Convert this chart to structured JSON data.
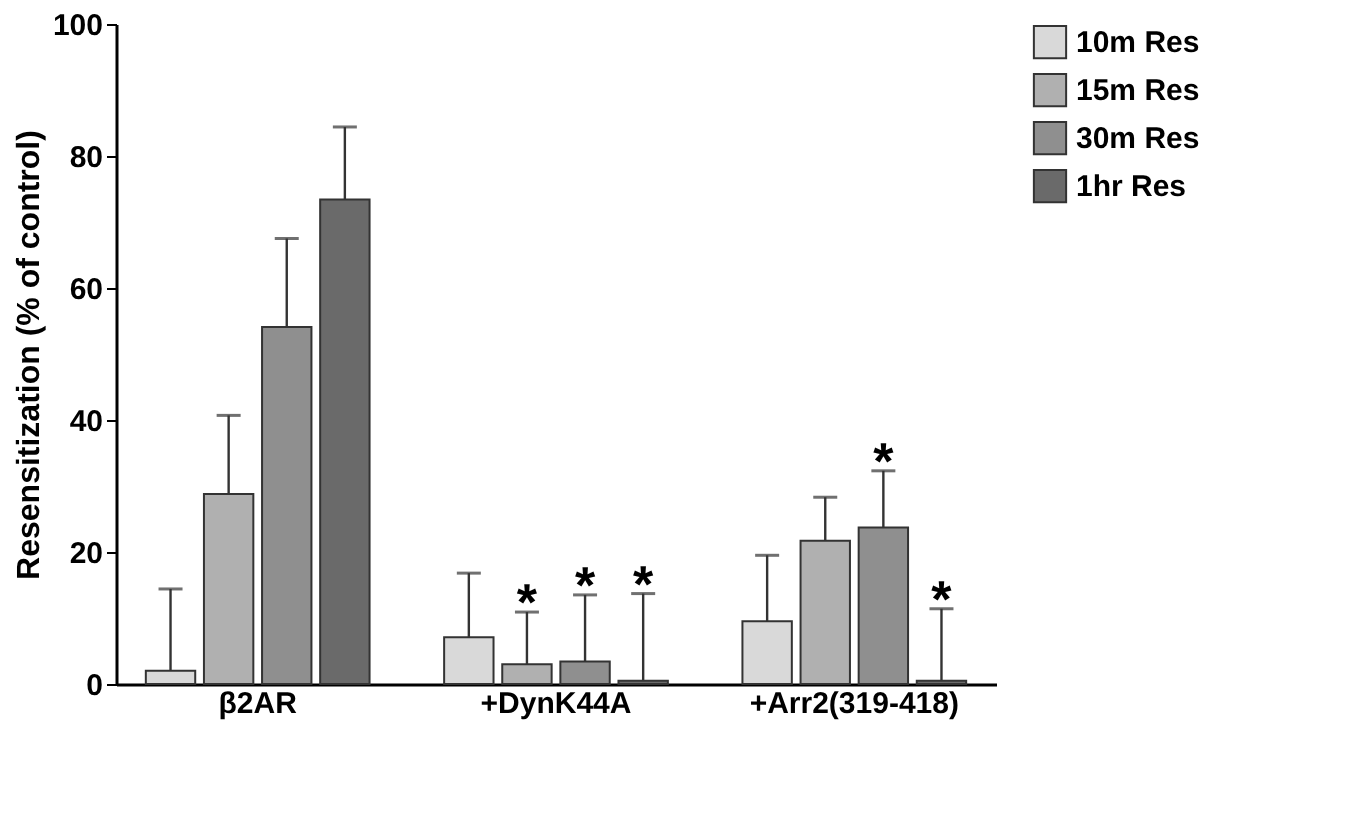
{
  "chart_data": {
    "type": "bar",
    "ylabel": "Resensitization (% of control)",
    "categories": [
      "β2AR",
      "+DynK44A",
      "+Arr2(319-418)"
    ],
    "series": [
      {
        "name": "10m Res",
        "color": "#d9d9d9",
        "values": [
          2.0,
          7.1,
          9.5
        ],
        "errors": [
          [
            2.0,
            14.4
          ],
          [
            7.1,
            16.8
          ],
          [
            9.5,
            19.5
          ]
        ]
      },
      {
        "name": "15m Res",
        "color": "#b0b0b0",
        "values": [
          28.8,
          3.0,
          21.7
        ],
        "errors": [
          [
            28.8,
            40.7
          ],
          [
            3.0,
            10.9
          ],
          [
            21.7,
            28.3
          ]
        ]
      },
      {
        "name": "30m Res",
        "color": "#8f8f8f",
        "values": [
          54.1,
          3.4,
          23.7
        ],
        "errors": [
          [
            54.1,
            67.5
          ],
          [
            3.4,
            13.5
          ],
          [
            23.7,
            32.3
          ]
        ]
      },
      {
        "name": "1hr Res",
        "color": "#6a6a6a",
        "values": [
          73.4,
          0.5,
          0.5
        ],
        "errors": [
          [
            73.4,
            84.4
          ],
          [
            0.5,
            13.7
          ],
          [
            0.5,
            11.4
          ]
        ]
      }
    ],
    "annotations": [
      {
        "text": "*",
        "x": "+DynK44A",
        "y": 3.0
      },
      {
        "text": "*",
        "x": "+DynK44A",
        "y": 3.4
      },
      {
        "text": "*",
        "x": "+DynK44A",
        "y": 0.5
      },
      {
        "text": "*",
        "x": "+Arr2(319-418)",
        "y": 23.7
      },
      {
        "text": "*",
        "x": "+Arr2(319-418)",
        "y": 0.5
      }
    ],
    "ylim": [
      0,
      100
    ],
    "yticks": [
      0,
      20,
      40,
      60,
      80,
      100
    ],
    "grid": false,
    "legend": "top right"
  }
}
